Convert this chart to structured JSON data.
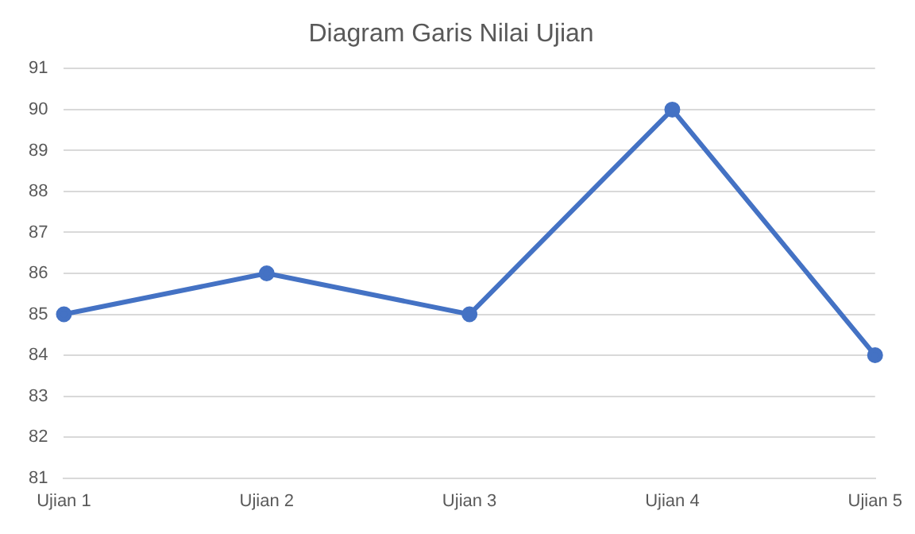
{
  "chart_data": {
    "type": "line",
    "title": "Diagram Garis Nilai Ujian",
    "categories": [
      "Ujian 1",
      "Ujian 2",
      "Ujian 3",
      "Ujian 4",
      "Ujian 5"
    ],
    "series": [
      {
        "color": "#4472c4",
        "values": [
          85,
          86,
          85,
          90,
          84
        ]
      }
    ],
    "ylim": [
      81,
      91
    ],
    "yticks": [
      81,
      82,
      83,
      84,
      85,
      86,
      87,
      88,
      89,
      90,
      91
    ],
    "grid": "y",
    "marker": "circle",
    "line_style": "solid",
    "legend": false
  }
}
